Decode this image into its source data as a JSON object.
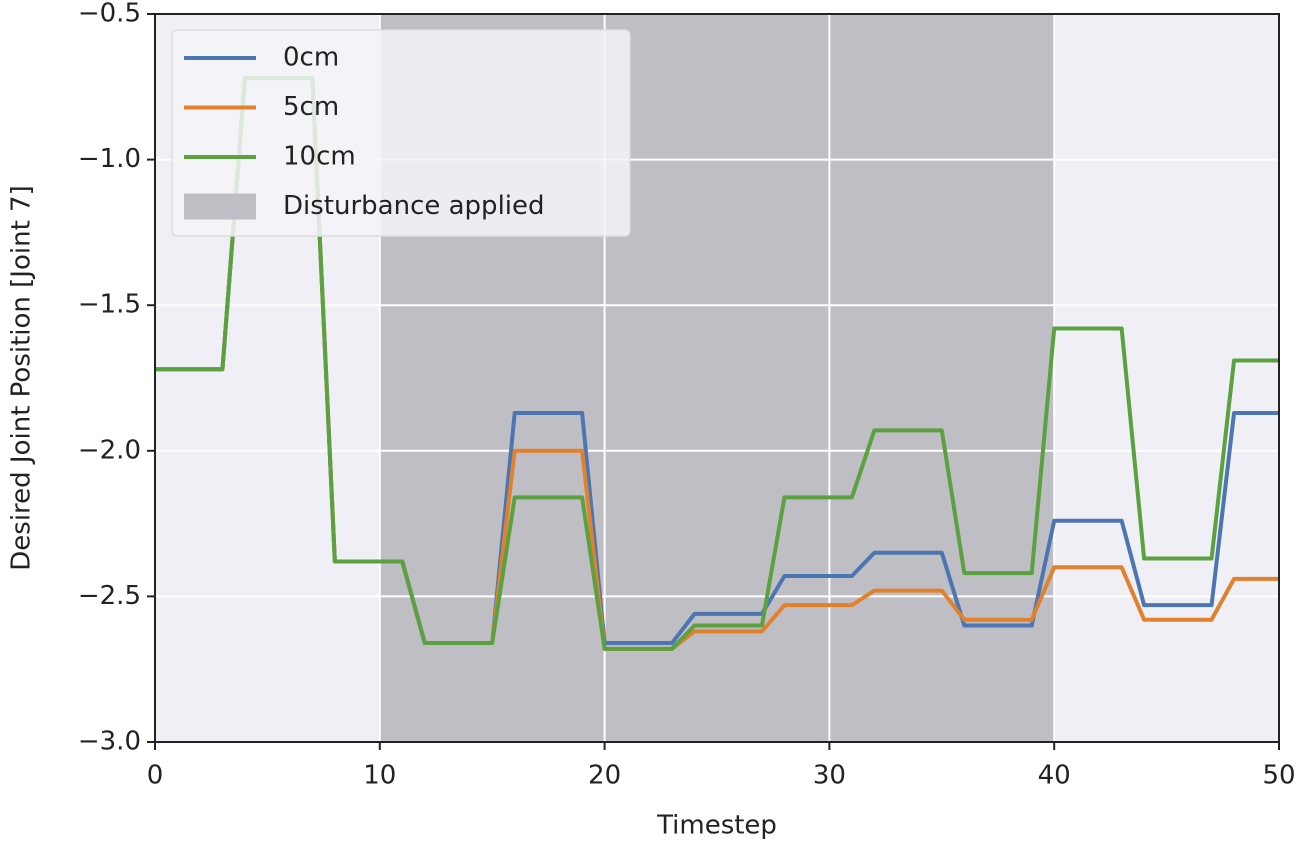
{
  "chart_data": {
    "type": "line",
    "xlabel": "Timestep",
    "ylabel": "Desired Joint Position [Joint 7]",
    "x": [
      0,
      1,
      2,
      3,
      4,
      5,
      6,
      7,
      8,
      9,
      10,
      11,
      12,
      13,
      14,
      15,
      16,
      17,
      18,
      19,
      20,
      21,
      22,
      23,
      24,
      25,
      26,
      27,
      28,
      29,
      30,
      31,
      32,
      33,
      34,
      35,
      36,
      37,
      38,
      39,
      40,
      41,
      42,
      43,
      44,
      45,
      46,
      47,
      48,
      49,
      50
    ],
    "series": [
      {
        "name": "0cm",
        "color": "#4c76b2",
        "values": [
          -1.72,
          -1.72,
          -1.72,
          -1.72,
          -0.72,
          -0.72,
          -0.72,
          -0.72,
          -2.38,
          -2.38,
          -2.38,
          -2.38,
          -2.66,
          -2.66,
          -2.66,
          -2.66,
          -1.87,
          -1.87,
          -1.87,
          -1.87,
          -2.66,
          -2.66,
          -2.66,
          -2.66,
          -2.56,
          -2.56,
          -2.56,
          -2.56,
          -2.43,
          -2.43,
          -2.43,
          -2.43,
          -2.35,
          -2.35,
          -2.35,
          -2.35,
          -2.6,
          -2.6,
          -2.6,
          -2.6,
          -2.24,
          -2.24,
          -2.24,
          -2.24,
          -2.53,
          -2.53,
          -2.53,
          -2.53,
          -1.87,
          -1.87,
          -1.87
        ]
      },
      {
        "name": "5cm",
        "color": "#e1812c",
        "values": [
          -1.72,
          -1.72,
          -1.72,
          -1.72,
          -0.72,
          -0.72,
          -0.72,
          -0.72,
          -2.38,
          -2.38,
          -2.38,
          -2.38,
          -2.66,
          -2.66,
          -2.66,
          -2.66,
          -2.0,
          -2.0,
          -2.0,
          -2.0,
          -2.68,
          -2.68,
          -2.68,
          -2.68,
          -2.62,
          -2.62,
          -2.62,
          -2.62,
          -2.53,
          -2.53,
          -2.53,
          -2.53,
          -2.48,
          -2.48,
          -2.48,
          -2.48,
          -2.58,
          -2.58,
          -2.58,
          -2.58,
          -2.4,
          -2.4,
          -2.4,
          -2.4,
          -2.58,
          -2.58,
          -2.58,
          -2.58,
          -2.44,
          -2.44,
          -2.44
        ]
      },
      {
        "name": "10cm",
        "color": "#5ba140",
        "values": [
          -1.72,
          -1.72,
          -1.72,
          -1.72,
          -0.72,
          -0.72,
          -0.72,
          -0.72,
          -2.38,
          -2.38,
          -2.38,
          -2.38,
          -2.66,
          -2.66,
          -2.66,
          -2.66,
          -2.16,
          -2.16,
          -2.16,
          -2.16,
          -2.68,
          -2.68,
          -2.68,
          -2.68,
          -2.6,
          -2.6,
          -2.6,
          -2.6,
          -2.16,
          -2.16,
          -2.16,
          -2.16,
          -1.93,
          -1.93,
          -1.93,
          -1.93,
          -2.42,
          -2.42,
          -2.42,
          -2.42,
          -1.58,
          -1.58,
          -1.58,
          -1.58,
          -2.37,
          -2.37,
          -2.37,
          -2.37,
          -1.69,
          -1.69,
          -1.69
        ]
      }
    ],
    "span": {
      "name": "Disturbance applied",
      "x": [
        10,
        40
      ],
      "color": "#bfbec4"
    },
    "xlim": [
      0,
      50
    ],
    "xticks": [
      0,
      10,
      20,
      30,
      40,
      50
    ],
    "ylim": [
      -3.0,
      -0.5
    ],
    "yticks": [
      {
        "value": -3.0,
        "label": "−3.0"
      },
      {
        "value": -2.5,
        "label": "−2.5"
      },
      {
        "value": -2.0,
        "label": "−2.0"
      },
      {
        "value": -1.5,
        "label": "−1.5"
      },
      {
        "value": -1.0,
        "label": "−1.0"
      },
      {
        "value": -0.5,
        "label": "−0.5"
      }
    ],
    "grid": true,
    "legend": "upper left"
  }
}
